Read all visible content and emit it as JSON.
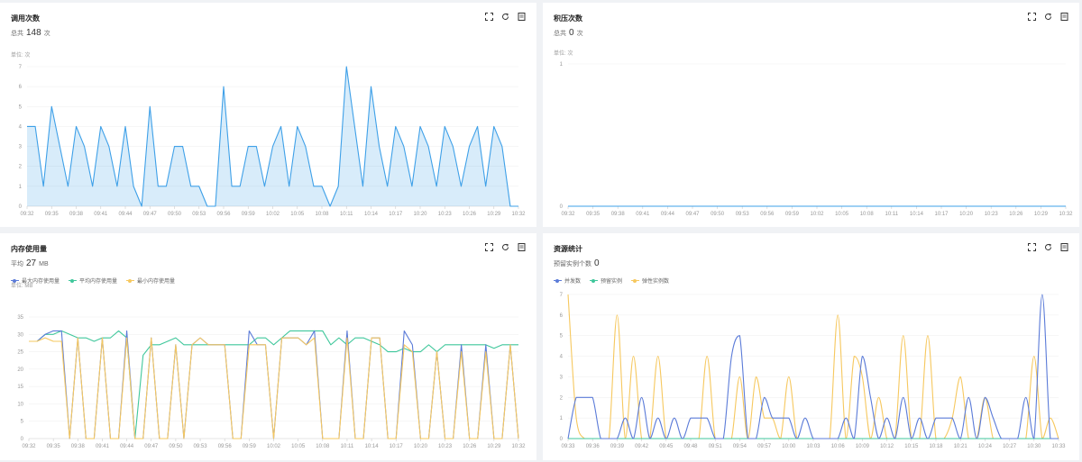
{
  "toolbar": {
    "icons": [
      "fullscreen-icon",
      "refresh-icon",
      "export-icon"
    ]
  },
  "panels": {
    "calls": {
      "title": "调用次数",
      "total_label": "总共",
      "total_value": "148",
      "total_unit": "次",
      "unit_label": "单位: 次"
    },
    "backlog": {
      "title": "积压次数",
      "total_label": "总共",
      "total_value": "0",
      "total_unit": "次",
      "unit_label": "单位: 次"
    },
    "memory": {
      "title": "内存使用量",
      "total_label": "平均",
      "total_value": "27",
      "total_unit": "MB",
      "unit_label": "单位: MB"
    },
    "resources": {
      "title": "资源统计",
      "total_label": "预留实例个数",
      "total_value": "0"
    }
  },
  "chart_data": [
    {
      "id": "calls",
      "type": "area",
      "ylim": [
        0,
        7
      ],
      "yticks": [
        0,
        1,
        2,
        3,
        4,
        5,
        6,
        7
      ],
      "xticks": [
        "09:32",
        "09:35",
        "09:38",
        "09:41",
        "09:44",
        "09:47",
        "09:50",
        "09:53",
        "09:56",
        "09:59",
        "10:02",
        "10:05",
        "10:08",
        "10:11",
        "10:14",
        "10:17",
        "10:20",
        "10:23",
        "10:26",
        "10:29",
        "10:32"
      ],
      "colors": [
        "#3ea0e8"
      ],
      "series": [
        {
          "values": [
            4,
            4,
            1,
            5,
            3,
            1,
            4,
            3,
            1,
            4,
            3,
            1,
            4,
            1,
            0,
            5,
            1,
            1,
            3,
            3,
            1,
            1,
            0,
            0,
            6,
            1,
            1,
            3,
            3,
            1,
            3,
            4,
            1,
            4,
            3,
            1,
            1,
            0,
            1,
            7,
            4,
            1,
            6,
            3,
            1,
            4,
            3,
            1,
            4,
            3,
            1,
            4,
            3,
            1,
            3,
            4,
            1,
            4,
            3,
            0,
            0
          ]
        }
      ]
    },
    {
      "id": "backlog",
      "type": "line",
      "ylim": [
        0,
        1
      ],
      "yticks": [
        0,
        1
      ],
      "xticks": [
        "09:32",
        "09:35",
        "09:38",
        "09:41",
        "09:44",
        "09:47",
        "09:50",
        "09:53",
        "09:56",
        "09:59",
        "10:02",
        "10:05",
        "10:08",
        "10:11",
        "10:14",
        "10:17",
        "10:20",
        "10:23",
        "10:26",
        "10:29",
        "10:32"
      ],
      "colors": [
        "#3ea0e8"
      ],
      "series": [
        {
          "values": [
            0,
            0,
            0,
            0,
            0,
            0,
            0,
            0,
            0,
            0,
            0,
            0,
            0,
            0,
            0,
            0,
            0,
            0,
            0,
            0,
            0
          ]
        }
      ]
    },
    {
      "id": "memory",
      "type": "line",
      "ylim": [
        0,
        35
      ],
      "yticks": [
        0,
        5,
        10,
        15,
        20,
        25,
        30,
        35
      ],
      "xticks": [
        "09:32",
        "09:35",
        "09:38",
        "09:41",
        "09:44",
        "09:47",
        "09:50",
        "09:53",
        "09:56",
        "09:59",
        "10:02",
        "10:05",
        "10:08",
        "10:11",
        "10:14",
        "10:17",
        "10:20",
        "10:23",
        "10:26",
        "10:29",
        "10:32"
      ],
      "colors": [
        "#5b7bd8",
        "#3fc79b",
        "#f6c85f"
      ],
      "series": [
        {
          "name": "最大内存使用量",
          "values": [
            28,
            28,
            30,
            31,
            31,
            0,
            29,
            0,
            0,
            29,
            0,
            0,
            31,
            0,
            0,
            29,
            0,
            0,
            27,
            0,
            27,
            29,
            27,
            27,
            27,
            0,
            0,
            31,
            27,
            27,
            0,
            29,
            29,
            29,
            27,
            31,
            0,
            0,
            0,
            31,
            0,
            0,
            29,
            29,
            0,
            0,
            31,
            27,
            0,
            0,
            25,
            0,
            0,
            27,
            0,
            0,
            27,
            0,
            0,
            27,
            0
          ]
        },
        {
          "name": "平均内存使用量",
          "values": [
            28,
            28,
            30,
            30,
            31,
            30,
            29,
            29,
            28,
            29,
            29,
            31,
            29,
            0,
            24,
            27,
            27,
            28,
            29,
            27,
            27,
            27,
            27,
            27,
            27,
            27,
            27,
            27,
            29,
            29,
            27,
            29,
            31,
            31,
            31,
            31,
            31,
            27,
            29,
            27,
            29,
            29,
            28,
            27,
            25,
            25,
            26,
            25,
            25,
            27,
            25,
            27,
            27,
            27,
            27,
            27,
            27,
            26,
            27,
            27,
            27
          ]
        },
        {
          "name": "最小内存使用量",
          "values": [
            28,
            28,
            29,
            28,
            28,
            0,
            29,
            0,
            0,
            29,
            0,
            0,
            29,
            0,
            0,
            29,
            0,
            0,
            27,
            0,
            27,
            29,
            27,
            27,
            27,
            0,
            0,
            27,
            27,
            27,
            0,
            29,
            29,
            29,
            27,
            29,
            0,
            0,
            0,
            29,
            0,
            0,
            29,
            29,
            0,
            0,
            27,
            25,
            0,
            0,
            25,
            0,
            0,
            25,
            0,
            0,
            25,
            0,
            0,
            27,
            0
          ]
        }
      ]
    },
    {
      "id": "resources",
      "type": "line",
      "ylim": [
        0,
        7
      ],
      "yticks": [
        0,
        1,
        2,
        3,
        4,
        5,
        6,
        7
      ],
      "xticks": [
        "09:33",
        "09:36",
        "09:39",
        "09:42",
        "09:45",
        "09:48",
        "09:51",
        "09:54",
        "09:57",
        "10:00",
        "10:03",
        "10:06",
        "10:09",
        "10:12",
        "10:15",
        "10:18",
        "10:21",
        "10:24",
        "10:27",
        "10:30",
        "10:33"
      ],
      "colors": [
        "#5b7bd8",
        "#3fc79b",
        "#f6c85f"
      ],
      "series": [
        {
          "name": "并发数",
          "values": [
            0,
            2,
            2,
            2,
            0,
            0,
            0,
            1,
            0,
            2,
            0,
            1,
            0,
            1,
            0,
            1,
            1,
            1,
            0,
            0,
            4,
            5,
            0,
            0,
            2,
            1,
            1,
            1,
            0,
            1,
            0,
            0,
            0,
            0,
            1,
            0,
            4,
            2,
            0,
            1,
            0,
            2,
            0,
            1,
            0,
            1,
            1,
            1,
            0,
            2,
            0,
            2,
            1,
            0,
            0,
            0,
            2,
            0,
            7,
            0,
            0
          ]
        },
        {
          "name": "预留实例",
          "values": [
            0,
            0,
            0,
            0,
            0,
            0,
            0,
            0,
            0,
            0,
            0,
            0,
            0,
            0,
            0,
            0,
            0,
            0,
            0,
            0,
            0,
            0,
            0,
            0,
            0,
            0,
            0,
            0,
            0,
            0,
            0,
            0,
            0,
            0,
            0,
            0,
            0,
            0,
            0,
            0,
            0,
            0,
            0,
            0,
            0,
            0,
            0,
            0,
            0,
            0,
            0,
            0,
            0,
            0,
            0,
            0,
            0,
            0,
            0,
            0,
            0
          ]
        },
        {
          "name": "弹性实例数",
          "values": [
            7,
            1,
            0,
            0,
            0,
            0,
            6,
            0,
            4,
            0,
            0,
            4,
            0,
            0,
            0,
            0,
            0,
            4,
            0,
            0,
            0,
            3,
            0,
            3,
            1,
            1,
            0,
            3,
            0,
            0,
            0,
            0,
            0,
            6,
            0,
            4,
            3,
            0,
            2,
            0,
            0,
            5,
            0,
            0,
            5,
            0,
            0,
            1,
            3,
            0,
            0,
            2,
            0,
            0,
            0,
            0,
            0,
            4,
            0,
            1,
            0
          ]
        }
      ]
    }
  ]
}
